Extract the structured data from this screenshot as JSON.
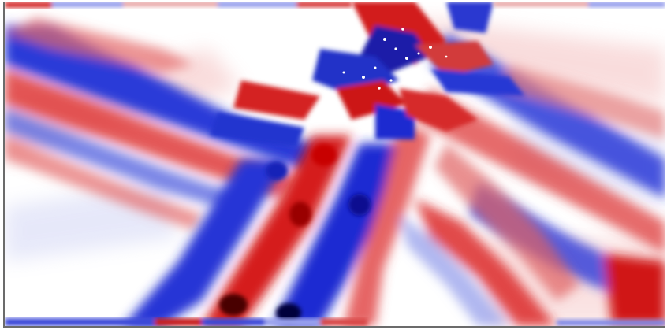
{
  "image": {
    "kind": "seismic wavefield snapshot",
    "colormap": {
      "positive": "#d7191c",
      "positive_dark": "#5a0000",
      "negative": "#1f2fd6",
      "negative_dark": "#000050",
      "zero": "#ffffff"
    },
    "axes_visible": false,
    "frame_color": "#6b6b6b"
  }
}
